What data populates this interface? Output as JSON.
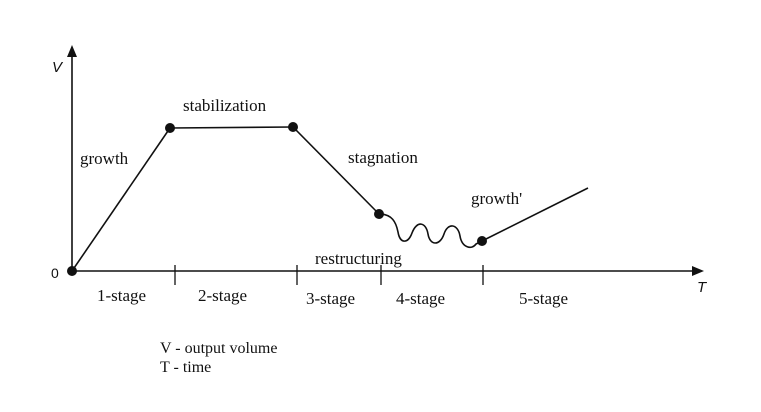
{
  "axes": {
    "y_label": "V",
    "x_label": "T",
    "origin_label": "0"
  },
  "phases": {
    "growth": "growth",
    "stabilization": "stabilization",
    "stagnation": "stagnation",
    "restructuring": "restructuring",
    "growth_prime": "growth'"
  },
  "stages": [
    "1-stage",
    "2-stage",
    "3-stage",
    "4-stage",
    "5-stage"
  ],
  "legend": {
    "v": "V - output volume",
    "t": "T - time"
  }
}
